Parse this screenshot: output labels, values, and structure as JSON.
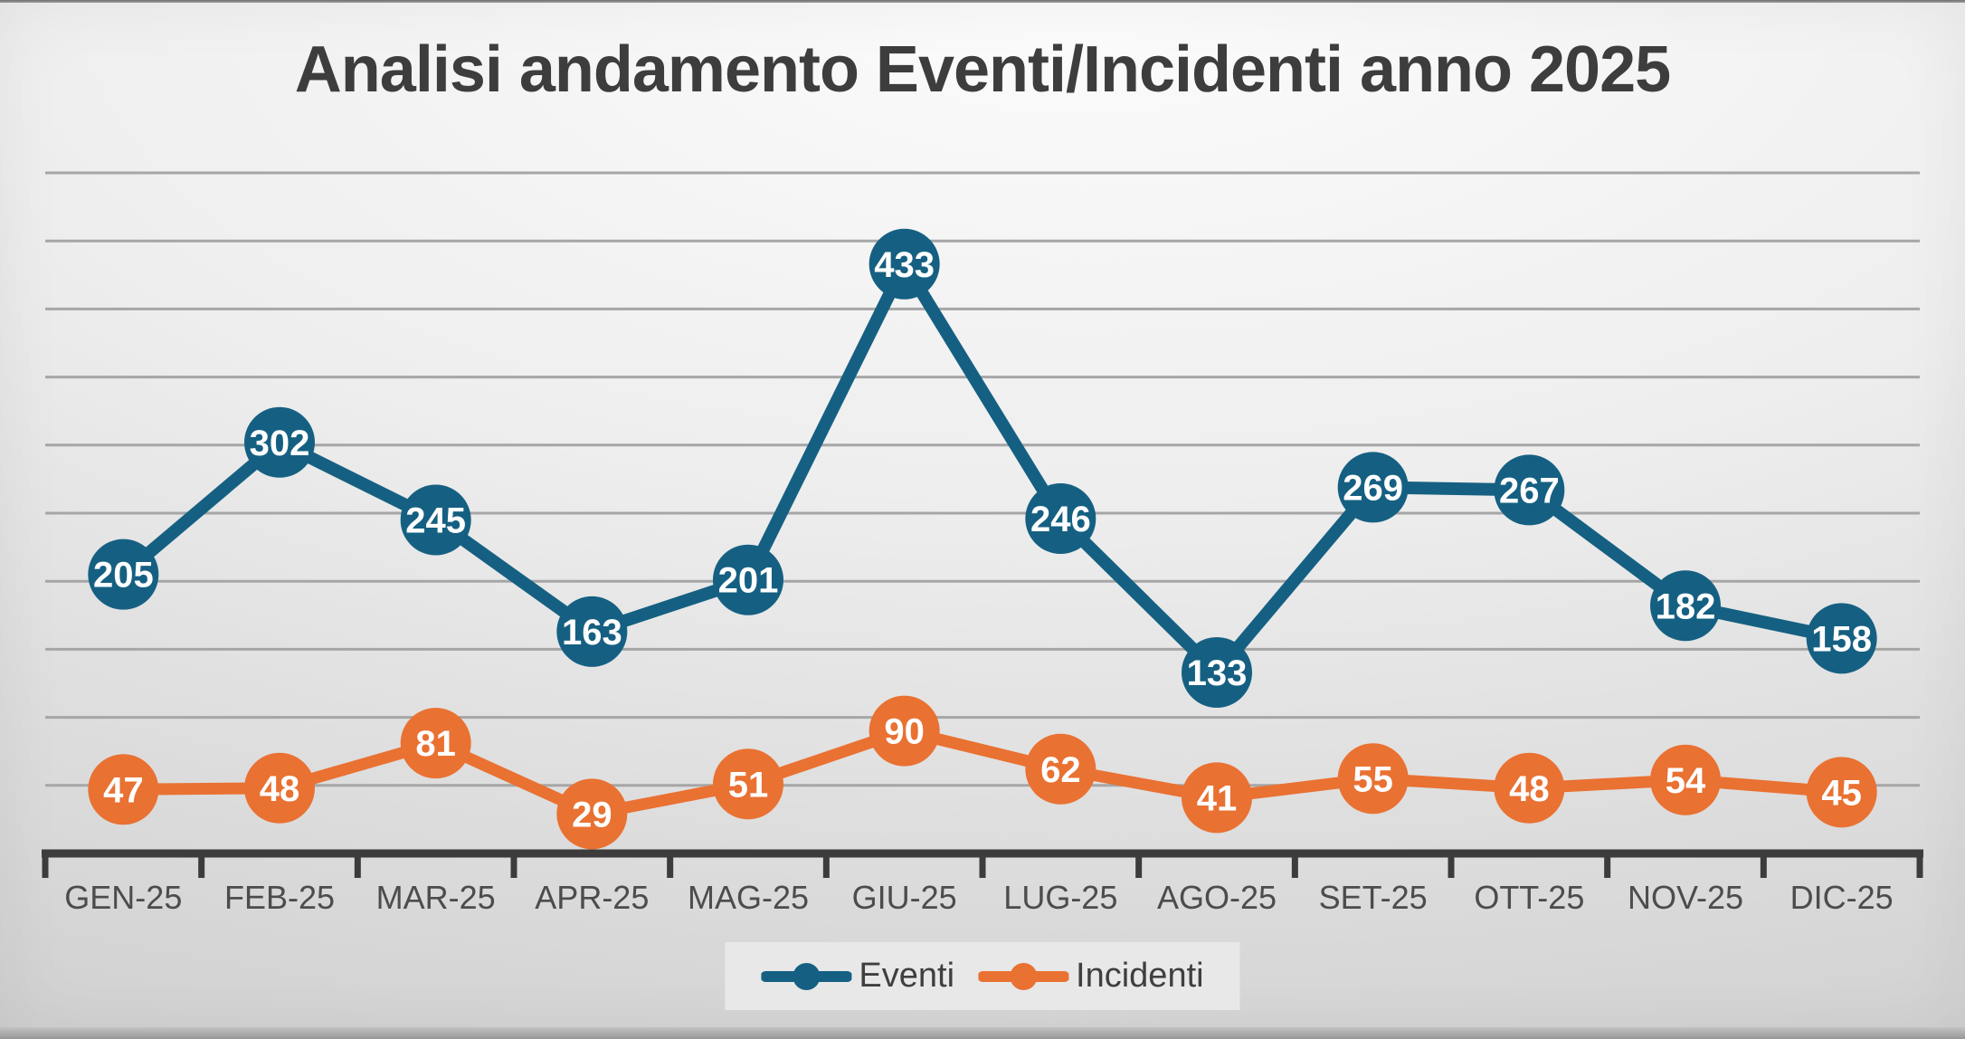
{
  "chart_data": {
    "type": "line",
    "title": "Analisi andamento Eventi/Incidenti anno 2025",
    "categories": [
      "GEN-25",
      "FEB-25",
      "MAR-25",
      "APR-25",
      "MAG-25",
      "GIU-25",
      "LUG-25",
      "AGO-25",
      "SET-25",
      "OTT-25",
      "NOV-25",
      "DIC-25"
    ],
    "series": [
      {
        "name": "Eventi",
        "color": "#156082",
        "values": [
          205,
          302,
          245,
          163,
          201,
          433,
          246,
          133,
          269,
          267,
          182,
          158
        ]
      },
      {
        "name": "Incidenti",
        "color": "#E97132",
        "values": [
          47,
          48,
          81,
          29,
          51,
          90,
          62,
          41,
          55,
          48,
          54,
          45
        ]
      }
    ],
    "xlabel": "",
    "ylabel": "",
    "ylim": [
      0,
      500
    ],
    "grid_step": 50,
    "grid": "horizontal-only, no y-axis tick labels",
    "legend_position": "bottom-center",
    "data_labels": "centered inside circular markers",
    "style": {
      "axis_color": "#3c3c3c",
      "grid_color": "#a6a6a6",
      "tick_label_color": "#4c4c4c",
      "title_color": "#3d3d3d",
      "data_label_color": "#ffffff",
      "legend_bg": "#e8e8e8",
      "legend_text_color": "#3f3f3f"
    }
  }
}
